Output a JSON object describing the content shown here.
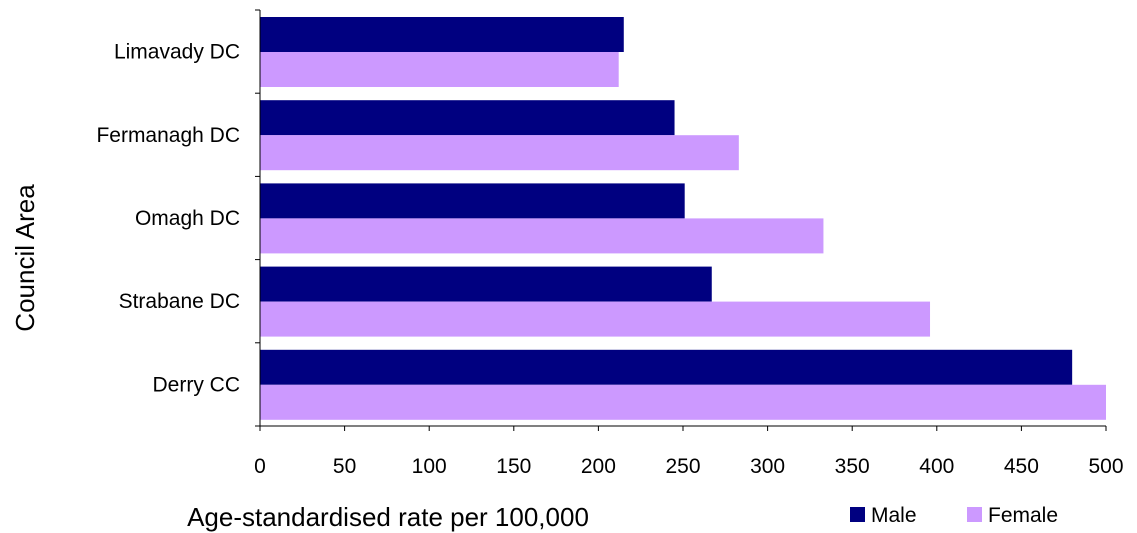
{
  "chart_data": {
    "type": "bar",
    "orientation": "horizontal",
    "categories": [
      "Limavady DC",
      "Fermanagh DC",
      "Omagh DC",
      "Strabane DC",
      "Derry CC"
    ],
    "series": [
      {
        "name": "Male",
        "color": "#000080",
        "values": [
          215,
          245,
          251,
          267,
          480
        ]
      },
      {
        "name": "Female",
        "color": "#cc99ff",
        "values": [
          212,
          283,
          333,
          396,
          500
        ]
      }
    ],
    "xlabel": "Age-standardised rate per 100,000",
    "ylabel": "Council Area",
    "xlim": [
      0,
      500
    ],
    "xticks": [
      "0",
      "50",
      "100",
      "150",
      "200",
      "250",
      "300",
      "350",
      "400",
      "450",
      "500"
    ],
    "grid": false,
    "legend_position": "bottom-right"
  }
}
